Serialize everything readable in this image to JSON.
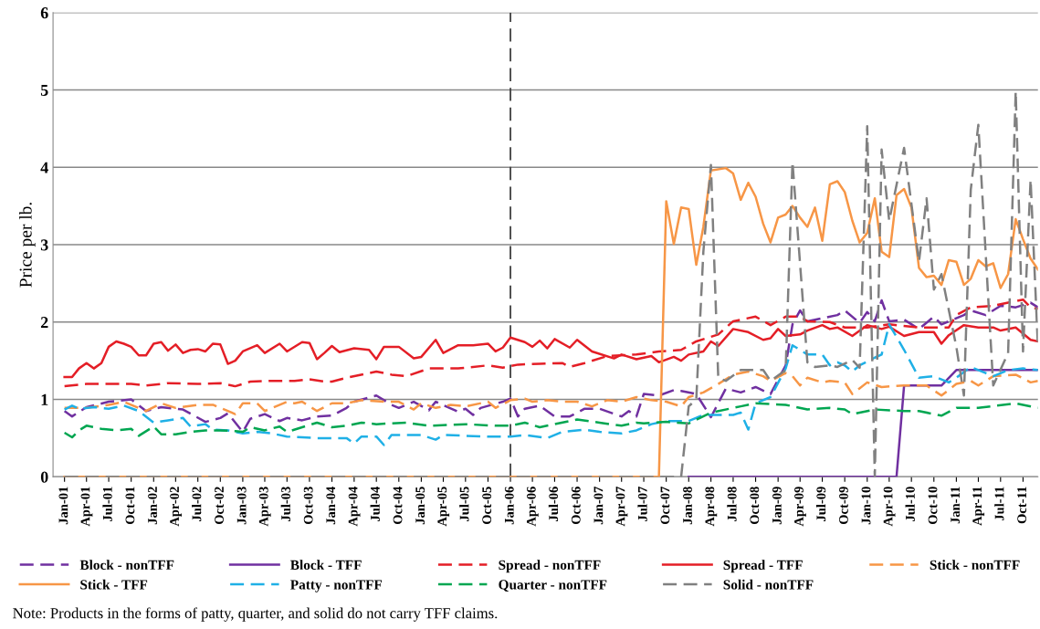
{
  "chart_data": {
    "type": "line",
    "ylabel": "Price per lb.",
    "xlim": [
      "2000-11-15",
      "2011-12-01"
    ],
    "xticks": [
      {
        "value": "2001-01",
        "label": "Jan-01"
      },
      {
        "value": "2001-04",
        "label": "Apr-01"
      },
      {
        "value": "2001-07",
        "label": "Jul-01"
      },
      {
        "value": "2001-10",
        "label": "Oct-01"
      },
      {
        "value": "2002-01",
        "label": "Jan-02"
      },
      {
        "value": "2002-04",
        "label": "Apr-02"
      },
      {
        "value": "2002-07",
        "label": "Jul-02"
      },
      {
        "value": "2002-10",
        "label": "Oct-02"
      },
      {
        "value": "2003-01",
        "label": "Jan-03"
      },
      {
        "value": "2003-04",
        "label": "Apr-03"
      },
      {
        "value": "2003-07",
        "label": "Jul-03"
      },
      {
        "value": "2003-10",
        "label": "Oct-03"
      },
      {
        "value": "2004-01",
        "label": "Jan-04"
      },
      {
        "value": "2004-04",
        "label": "Apr-04"
      },
      {
        "value": "2004-07",
        "label": "Jul-04"
      },
      {
        "value": "2004-10",
        "label": "Oct-04"
      },
      {
        "value": "2005-01",
        "label": "Jan-05"
      },
      {
        "value": "2005-04",
        "label": "Apr-05"
      },
      {
        "value": "2005-07",
        "label": "Jul-05"
      },
      {
        "value": "2005-10",
        "label": "Oct-05"
      },
      {
        "value": "2006-01",
        "label": "Jan-06"
      },
      {
        "value": "2006-04",
        "label": "Apr-06"
      },
      {
        "value": "2006-07",
        "label": "Jul-06"
      },
      {
        "value": "2006-10",
        "label": "Oct-06"
      },
      {
        "value": "2007-01",
        "label": "Jan-07"
      },
      {
        "value": "2007-04",
        "label": "Apr-07"
      },
      {
        "value": "2007-07",
        "label": "Jul-07"
      },
      {
        "value": "2007-10",
        "label": "Oct-07"
      },
      {
        "value": "2008-01",
        "label": "Jan-08"
      },
      {
        "value": "2008-04",
        "label": "Apr-08"
      },
      {
        "value": "2008-07",
        "label": "Jul-08"
      },
      {
        "value": "2008-10",
        "label": "Oct-08"
      },
      {
        "value": "2009-01",
        "label": "Jan-09"
      },
      {
        "value": "2009-04",
        "label": "Apr-09"
      },
      {
        "value": "2009-07",
        "label": "Jul-09"
      },
      {
        "value": "2009-10",
        "label": "Oct-09"
      },
      {
        "value": "2010-01",
        "label": "Jan-10"
      },
      {
        "value": "2010-04",
        "label": "Apr-10"
      },
      {
        "value": "2010-07",
        "label": "Jul-10"
      },
      {
        "value": "2010-10",
        "label": "Oct-10"
      },
      {
        "value": "2011-01",
        "label": "Jan-11"
      },
      {
        "value": "2011-04",
        "label": "Apr-11"
      },
      {
        "value": "2011-07",
        "label": "Jul-11"
      },
      {
        "value": "2011-10",
        "label": "Oct-11"
      }
    ],
    "ylim": [
      0,
      6
    ],
    "yticks": [
      0,
      1,
      2,
      3,
      4,
      5,
      6
    ],
    "grid": "y",
    "legend": "bottom",
    "ref_lines": [
      {
        "axis": "x",
        "value": "2006-01",
        "color": "#404040",
        "line_style": "dashed"
      }
    ],
    "annotations": [
      "Note: Products in the forms of patty, quarter, and solid do not carry TFF claims."
    ],
    "series": [
      {
        "name": "Block - nonTFF",
        "color": "#7030a0",
        "line_style": "dashed",
        "x": [
          "2001-01",
          "2001-02",
          "2001-04",
          "2001-07",
          "2001-10",
          "2001-12",
          "2002-02",
          "2002-05",
          "2002-08",
          "2002-10",
          "2002-11",
          "2003-01",
          "2003-02",
          "2003-04",
          "2003-06",
          "2003-07",
          "2003-09",
          "2003-11",
          "2004-01",
          "2004-03",
          "2004-04",
          "2004-07",
          "2004-09",
          "2004-10",
          "2004-12",
          "2005-02",
          "2005-03",
          "2005-06",
          "2005-07",
          "2005-08",
          "2005-09",
          "2005-12",
          "2006-01",
          "2006-02",
          "2006-03",
          "2006-05",
          "2006-07",
          "2006-09",
          "2006-11",
          "2007-01",
          "2007-04",
          "2007-05",
          "2007-06",
          "2007-07",
          "2007-09",
          "2007-11",
          "2007-12",
          "2008-02",
          "2008-04",
          "2008-06",
          "2008-08",
          "2008-10",
          "2008-12",
          "2009-02",
          "2009-03",
          "2009-04",
          "2009-05",
          "2009-07",
          "2009-09",
          "2009-10",
          "2009-12",
          "2010-01",
          "2010-02",
          "2010-03",
          "2010-04",
          "2010-06",
          "2010-08",
          "2010-10",
          "2010-11",
          "2011-02",
          "2011-03",
          "2011-05",
          "2011-07",
          "2011-09",
          "2011-11",
          "2011-12"
        ],
        "values": [
          0.85,
          0.78,
          0.9,
          0.97,
          1.0,
          0.85,
          0.9,
          0.87,
          0.71,
          0.76,
          0.82,
          0.58,
          0.75,
          0.81,
          0.72,
          0.76,
          0.73,
          0.78,
          0.79,
          0.89,
          0.97,
          1.05,
          0.93,
          0.89,
          0.97,
          0.86,
          0.97,
          0.84,
          0.88,
          0.8,
          0.89,
          0.97,
          1.01,
          0.78,
          0.88,
          0.92,
          0.78,
          0.78,
          0.88,
          0.88,
          0.78,
          0.85,
          0.78,
          1.07,
          1.05,
          1.12,
          1.11,
          1.07,
          0.77,
          1.14,
          1.09,
          1.16,
          1.07,
          1.44,
          1.97,
          2.15,
          2.01,
          2.05,
          2.09,
          2.15,
          1.99,
          2.13,
          2.01,
          2.28,
          2.01,
          2.03,
          1.91,
          2.07,
          1.97,
          2.09,
          2.15,
          2.09,
          2.21,
          2.19,
          2.25,
          2.19
        ]
      },
      {
        "name": "Block - TFF",
        "color": "#7030a0",
        "line_style": "solid",
        "x": [
          "2008-01",
          "2010-05",
          "2010-06",
          "2010-11",
          "2011-01",
          "2011-12"
        ],
        "values": [
          0,
          0,
          1.18,
          1.18,
          1.38,
          1.38
        ]
      },
      {
        "name": "Spread - nonTFF",
        "color": "#e41e26",
        "line_style": "dashed",
        "x": [
          "2001-01",
          "2001-04",
          "2001-07",
          "2001-10",
          "2001-12",
          "2002-03",
          "2002-07",
          "2002-10",
          "2002-12",
          "2003-02",
          "2003-05",
          "2003-08",
          "2003-10",
          "2003-12",
          "2004-01",
          "2004-03",
          "2004-07",
          "2004-09",
          "2004-11",
          "2005-02",
          "2005-06",
          "2005-10",
          "2005-12",
          "2006-02",
          "2006-05",
          "2006-08",
          "2006-09",
          "2006-11",
          "2007-02",
          "2007-06",
          "2007-09",
          "2007-12",
          "2008-02",
          "2008-05",
          "2008-07",
          "2008-10",
          "2008-12",
          "2009-02",
          "2009-04",
          "2009-05",
          "2009-08",
          "2009-10",
          "2010-01",
          "2010-04",
          "2010-08",
          "2010-12",
          "2011-01",
          "2011-03",
          "2011-06",
          "2011-08",
          "2011-10",
          "2011-11",
          "2011-12"
        ],
        "values": [
          1.17,
          1.2,
          1.2,
          1.2,
          1.18,
          1.21,
          1.2,
          1.21,
          1.17,
          1.23,
          1.24,
          1.24,
          1.26,
          1.23,
          1.23,
          1.28,
          1.36,
          1.32,
          1.3,
          1.4,
          1.4,
          1.44,
          1.41,
          1.45,
          1.46,
          1.47,
          1.42,
          1.47,
          1.56,
          1.58,
          1.62,
          1.64,
          1.75,
          1.84,
          2.01,
          2.07,
          1.96,
          2.07,
          2.07,
          2.01,
          2.0,
          1.93,
          1.93,
          1.97,
          1.93,
          1.93,
          2.09,
          2.19,
          2.21,
          2.25,
          2.29,
          2.19,
          2.17
        ]
      },
      {
        "name": "Spread - TFF",
        "color": "#e41e26",
        "line_style": "solid",
        "x": [
          "2001-01",
          "2001-02",
          "2001-03",
          "2001-04",
          "2001-05",
          "2001-06",
          "2001-07",
          "2001-08",
          "2001-09",
          "2001-10",
          "2001-11",
          "2001-12",
          "2002-01",
          "2002-02",
          "2002-03",
          "2002-04",
          "2002-05",
          "2002-06",
          "2002-07",
          "2002-08",
          "2002-09",
          "2002-10",
          "2002-11",
          "2002-12",
          "2003-01",
          "2003-03",
          "2003-04",
          "2003-06",
          "2003-07",
          "2003-09",
          "2003-10",
          "2003-11",
          "2003-12",
          "2004-01",
          "2004-02",
          "2004-04",
          "2004-06",
          "2004-07",
          "2004-08",
          "2004-10",
          "2004-12",
          "2005-01",
          "2005-03",
          "2005-04",
          "2005-06",
          "2005-08",
          "2005-10",
          "2005-11",
          "2005-12",
          "2006-01",
          "2006-03",
          "2006-04",
          "2006-05",
          "2006-06",
          "2006-07",
          "2006-09",
          "2006-10",
          "2006-12",
          "2007-03",
          "2007-04",
          "2007-06",
          "2007-08",
          "2007-09",
          "2007-11",
          "2007-12",
          "2008-01",
          "2008-03",
          "2008-04",
          "2008-05",
          "2008-07",
          "2008-09",
          "2008-11",
          "2008-12",
          "2009-01",
          "2009-02",
          "2009-04",
          "2009-05",
          "2009-07",
          "2009-08",
          "2009-09",
          "2009-11",
          "2010-01",
          "2010-03",
          "2010-04",
          "2010-06",
          "2010-08",
          "2010-10",
          "2010-11",
          "2010-12",
          "2011-02",
          "2011-04",
          "2011-06",
          "2011-07",
          "2011-09",
          "2011-11",
          "2011-12"
        ],
        "values": [
          1.29,
          1.29,
          1.4,
          1.47,
          1.4,
          1.47,
          1.68,
          1.75,
          1.72,
          1.68,
          1.57,
          1.57,
          1.72,
          1.74,
          1.63,
          1.71,
          1.6,
          1.64,
          1.65,
          1.62,
          1.72,
          1.71,
          1.46,
          1.5,
          1.62,
          1.7,
          1.6,
          1.72,
          1.62,
          1.74,
          1.73,
          1.52,
          1.6,
          1.69,
          1.61,
          1.66,
          1.64,
          1.52,
          1.68,
          1.68,
          1.53,
          1.55,
          1.77,
          1.6,
          1.7,
          1.7,
          1.72,
          1.62,
          1.67,
          1.8,
          1.74,
          1.68,
          1.76,
          1.66,
          1.78,
          1.67,
          1.77,
          1.62,
          1.53,
          1.58,
          1.52,
          1.56,
          1.48,
          1.55,
          1.5,
          1.58,
          1.62,
          1.75,
          1.69,
          1.91,
          1.87,
          1.77,
          1.79,
          1.91,
          1.82,
          1.84,
          1.89,
          1.96,
          1.91,
          1.93,
          1.82,
          1.96,
          1.91,
          1.94,
          1.82,
          1.87,
          1.87,
          1.72,
          1.83,
          1.96,
          1.93,
          1.93,
          1.89,
          1.93,
          1.77,
          1.75
        ]
      },
      {
        "name": "Stick - nonTFF",
        "color": "#f79646",
        "line_style": "dashed",
        "x": [
          "2001-01",
          "2001-04",
          "2001-07",
          "2001-09",
          "2001-12",
          "2002-02",
          "2002-04",
          "2002-07",
          "2002-09",
          "2002-12",
          "2003-01",
          "2003-03",
          "2003-04",
          "2003-07",
          "2003-08",
          "2003-09",
          "2003-11",
          "2004-01",
          "2004-03",
          "2004-05",
          "2004-08",
          "2004-10",
          "2004-12",
          "2005-01",
          "2005-03",
          "2005-05",
          "2005-07",
          "2005-10",
          "2005-11",
          "2006-01",
          "2006-03",
          "2006-04",
          "2006-06",
          "2006-08",
          "2006-10",
          "2006-12",
          "2007-02",
          "2007-04",
          "2007-06",
          "2007-08",
          "2007-10",
          "2007-12",
          "2008-01",
          "2008-03",
          "2008-05",
          "2008-07",
          "2008-09",
          "2008-11",
          "2008-12",
          "2009-02",
          "2009-03",
          "2009-04",
          "2009-05",
          "2009-07",
          "2009-08",
          "2009-10",
          "2009-11",
          "2010-01",
          "2010-03",
          "2010-06",
          "2010-09",
          "2010-11",
          "2011-01",
          "2011-03",
          "2011-04",
          "2011-06",
          "2011-09",
          "2011-11",
          "2011-12"
        ],
        "values": [
          0.89,
          0.89,
          0.93,
          0.97,
          0.85,
          0.95,
          0.89,
          0.93,
          0.93,
          0.81,
          0.95,
          0.95,
          0.85,
          0.97,
          0.95,
          0.97,
          0.85,
          0.95,
          0.95,
          0.99,
          0.97,
          0.97,
          0.87,
          0.95,
          0.89,
          0.93,
          0.91,
          0.97,
          0.89,
          0.99,
          1.01,
          0.97,
          0.99,
          0.97,
          0.97,
          0.91,
          0.99,
          0.97,
          1.03,
          0.99,
          0.97,
          0.91,
          1.03,
          1.09,
          1.2,
          1.32,
          1.36,
          1.3,
          1.24,
          1.34,
          1.3,
          1.18,
          1.28,
          1.22,
          1.24,
          1.22,
          1.07,
          1.22,
          1.16,
          1.18,
          1.18,
          1.05,
          1.2,
          1.24,
          1.18,
          1.3,
          1.32,
          1.22,
          1.24
        ]
      },
      {
        "name": "Stick - TFF",
        "color": "#f79646",
        "line_style": "solid",
        "x": [
          "2001-01",
          "2007-09",
          "2007-10",
          "2007-11",
          "2007-12",
          "2008-01",
          "2008-02",
          "2008-03",
          "2008-04",
          "2008-06",
          "2008-07",
          "2008-08",
          "2008-09",
          "2008-10",
          "2008-11",
          "2008-12",
          "2009-01",
          "2009-02",
          "2009-03",
          "2009-04",
          "2009-05",
          "2009-06",
          "2009-07",
          "2009-08",
          "2009-09",
          "2009-10",
          "2009-11",
          "2009-12",
          "2010-01",
          "2010-02",
          "2010-03",
          "2010-04",
          "2010-05",
          "2010-06",
          "2010-07",
          "2010-08",
          "2010-09",
          "2010-10",
          "2010-11",
          "2010-12",
          "2011-01",
          "2011-02",
          "2011-03",
          "2011-04",
          "2011-05",
          "2011-06",
          "2011-07",
          "2011-08",
          "2011-09",
          "2011-10",
          "2011-11",
          "2011-12"
        ],
        "values": [
          0,
          0,
          3.56,
          3.01,
          3.48,
          3.46,
          2.74,
          3.23,
          3.96,
          3.99,
          3.92,
          3.58,
          3.8,
          3.62,
          3.27,
          3.03,
          3.35,
          3.39,
          3.5,
          3.35,
          3.23,
          3.48,
          3.05,
          3.78,
          3.82,
          3.68,
          3.31,
          3.03,
          3.15,
          3.6,
          2.91,
          2.84,
          3.64,
          3.72,
          3.48,
          2.7,
          2.58,
          2.6,
          2.48,
          2.8,
          2.78,
          2.48,
          2.56,
          2.8,
          2.72,
          2.76,
          2.44,
          2.62,
          3.33,
          3.07,
          2.82,
          2.68
        ]
      },
      {
        "name": "Patty - nonTFF",
        "color": "#1fb0e6",
        "line_style": "dashed",
        "x": [
          "2001-01",
          "2001-02",
          "2001-03",
          "2001-05",
          "2001-07",
          "2001-09",
          "2001-11",
          "2002-01",
          "2002-03",
          "2002-05",
          "2002-06",
          "2002-08",
          "2002-09",
          "2002-11",
          "2003-01",
          "2003-03",
          "2003-05",
          "2003-07",
          "2003-09",
          "2003-11",
          "2004-01",
          "2004-03",
          "2004-04",
          "2004-05",
          "2004-07",
          "2004-08",
          "2004-09",
          "2005-01",
          "2005-03",
          "2005-04",
          "2005-10",
          "2006-01",
          "2006-03",
          "2006-06",
          "2006-08",
          "2006-11",
          "2007-01",
          "2007-04",
          "2007-06",
          "2007-08",
          "2007-10",
          "2008-01",
          "2008-03",
          "2008-07",
          "2008-08",
          "2008-09",
          "2008-10",
          "2008-12",
          "2009-02",
          "2009-03",
          "2009-04",
          "2009-05",
          "2009-07",
          "2009-08",
          "2009-09",
          "2009-10",
          "2009-11",
          "2009-12",
          "2010-02",
          "2010-03",
          "2010-04",
          "2010-06",
          "2010-08",
          "2010-10",
          "2010-12",
          "2011-01",
          "2011-03",
          "2011-05",
          "2011-06",
          "2011-08",
          "2011-10",
          "2011-12"
        ],
        "values": [
          0.87,
          0.92,
          0.88,
          0.9,
          0.88,
          0.92,
          0.85,
          0.7,
          0.73,
          0.76,
          0.65,
          0.68,
          0.61,
          0.6,
          0.56,
          0.58,
          0.56,
          0.52,
          0.51,
          0.5,
          0.5,
          0.5,
          0.43,
          0.52,
          0.52,
          0.41,
          0.54,
          0.54,
          0.48,
          0.54,
          0.52,
          0.52,
          0.54,
          0.5,
          0.58,
          0.61,
          0.58,
          0.56,
          0.6,
          0.68,
          0.72,
          0.72,
          0.8,
          0.8,
          0.83,
          0.61,
          0.95,
          1.03,
          1.4,
          1.7,
          1.64,
          1.58,
          1.58,
          1.44,
          1.48,
          1.44,
          1.36,
          1.44,
          1.54,
          1.58,
          1.97,
          1.64,
          1.28,
          1.3,
          1.22,
          1.28,
          1.42,
          1.34,
          1.3,
          1.38,
          1.4,
          1.38
        ]
      },
      {
        "name": "Quarter - nonTFF",
        "color": "#00a651",
        "line_style": "dashed",
        "x": [
          "2001-01",
          "2001-02",
          "2001-03",
          "2001-04",
          "2001-06",
          "2001-08",
          "2001-10",
          "2001-11",
          "2002-01",
          "2002-02",
          "2002-04",
          "2002-06",
          "2002-08",
          "2002-10",
          "2002-12",
          "2003-01",
          "2003-02",
          "2003-04",
          "2003-06",
          "2003-07",
          "2003-09",
          "2003-11",
          "2004-01",
          "2004-03",
          "2004-05",
          "2004-07",
          "2004-11",
          "2005-02",
          "2005-07",
          "2005-11",
          "2006-01",
          "2006-03",
          "2006-05",
          "2006-07",
          "2006-10",
          "2007-01",
          "2007-04",
          "2007-06",
          "2007-07",
          "2007-10",
          "2008-01",
          "2008-04",
          "2008-08",
          "2008-10",
          "2009-02",
          "2009-05",
          "2009-08",
          "2009-10",
          "2009-11",
          "2010-02",
          "2010-06",
          "2010-08",
          "2010-11",
          "2011-01",
          "2011-04",
          "2011-09",
          "2011-12"
        ],
        "values": [
          0.57,
          0.51,
          0.6,
          0.66,
          0.62,
          0.6,
          0.62,
          0.53,
          0.65,
          0.55,
          0.55,
          0.58,
          0.6,
          0.6,
          0.59,
          0.58,
          0.64,
          0.6,
          0.65,
          0.58,
          0.64,
          0.7,
          0.64,
          0.66,
          0.7,
          0.68,
          0.7,
          0.66,
          0.68,
          0.66,
          0.66,
          0.7,
          0.64,
          0.68,
          0.74,
          0.7,
          0.66,
          0.7,
          0.69,
          0.71,
          0.69,
          0.83,
          0.91,
          0.95,
          0.93,
          0.87,
          0.89,
          0.87,
          0.81,
          0.87,
          0.85,
          0.85,
          0.79,
          0.89,
          0.89,
          0.95,
          0.89
        ]
      },
      {
        "name": "Solid - nonTFF",
        "color": "#808080",
        "line_style": "dashed",
        "x": [
          "2001-01",
          "2007-12",
          "2008-01",
          "2008-02",
          "2008-03",
          "2008-04",
          "2008-05",
          "2008-06",
          "2008-08",
          "2008-10",
          "2008-11",
          "2008-12",
          "2009-02",
          "2009-03",
          "2009-05",
          "2009-06",
          "2009-08",
          "2009-09",
          "2009-11",
          "2009-12",
          "2010-01",
          "2010-02",
          "2010-03",
          "2010-04",
          "2010-06",
          "2010-08",
          "2010-09",
          "2010-10",
          "2010-11",
          "2011-01",
          "2011-02",
          "2011-03",
          "2011-04",
          "2011-06",
          "2011-08",
          "2011-09",
          "2011-10",
          "2011-11",
          "2011-12"
        ],
        "values": [
          0,
          0,
          0.91,
          1.0,
          2.91,
          4.03,
          1.28,
          1.24,
          1.38,
          1.38,
          1.38,
          1.24,
          1.38,
          4.07,
          1.48,
          1.42,
          1.44,
          1.42,
          1.51,
          1.41,
          4.53,
          0,
          4.23,
          3.31,
          4.25,
          2.78,
          3.6,
          2.42,
          2.62,
          1.68,
          1.05,
          3.71,
          4.55,
          1.18,
          1.6,
          4.98,
          1.62,
          3.84,
          1.68
        ]
      }
    ]
  }
}
